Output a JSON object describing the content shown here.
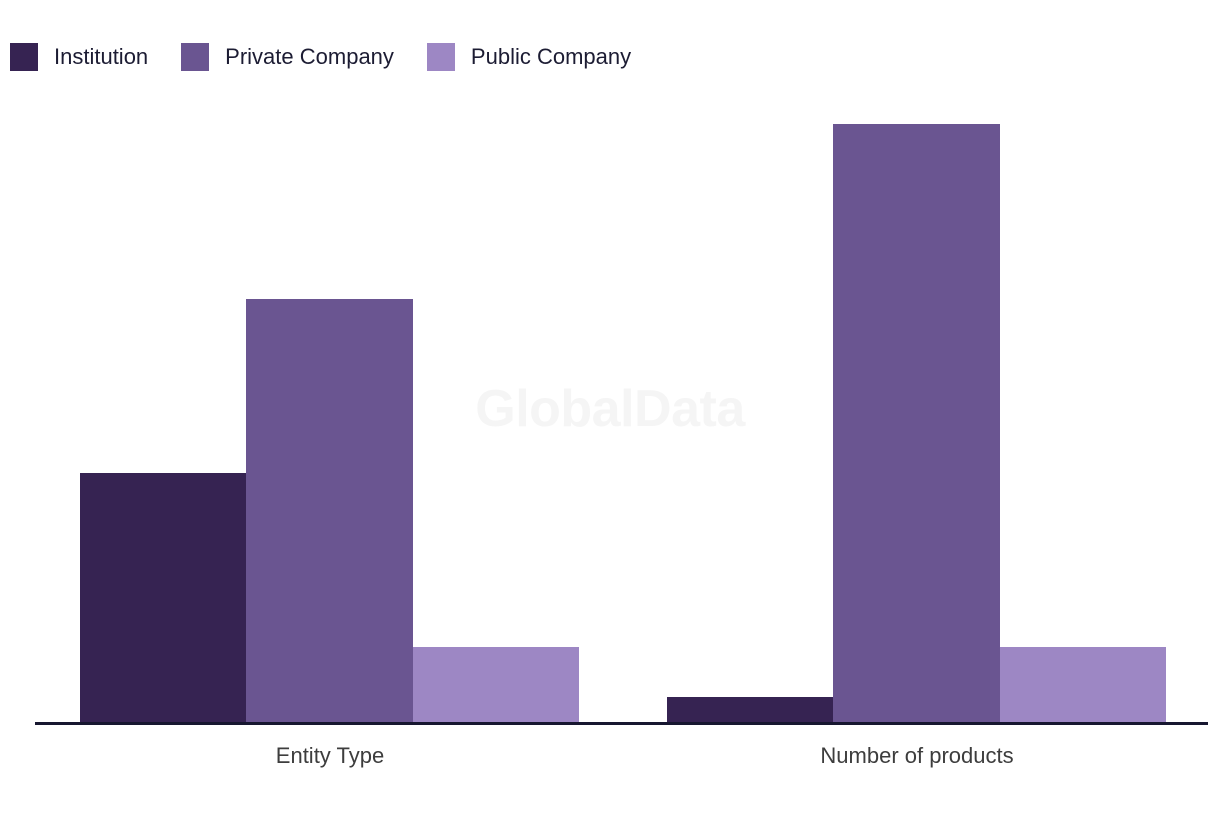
{
  "page": {
    "background_color": "#ffffff"
  },
  "axis": {
    "line_color": "#171730",
    "label_color": "#3d3d3d"
  },
  "watermark": {
    "text": "GlobalData",
    "color": "#f5f5f5"
  },
  "chart_data": {
    "type": "bar",
    "title": "",
    "xlabel": "",
    "ylabel": "",
    "categories": [
      "Entity Type",
      "Number of products"
    ],
    "series": [
      {
        "name": "Institution",
        "color": "#362352",
        "values": [
          10,
          1
        ]
      },
      {
        "name": "Private Company",
        "color": "#6a5591",
        "values": [
          17,
          24
        ]
      },
      {
        "name": "Public Company",
        "color": "#9d87c4",
        "values": [
          3,
          3
        ]
      }
    ],
    "ylim": [
      0,
      25
    ],
    "y_axis_visible": false,
    "grid": false,
    "legend_position": "top-left",
    "watermark": "GlobalData"
  }
}
